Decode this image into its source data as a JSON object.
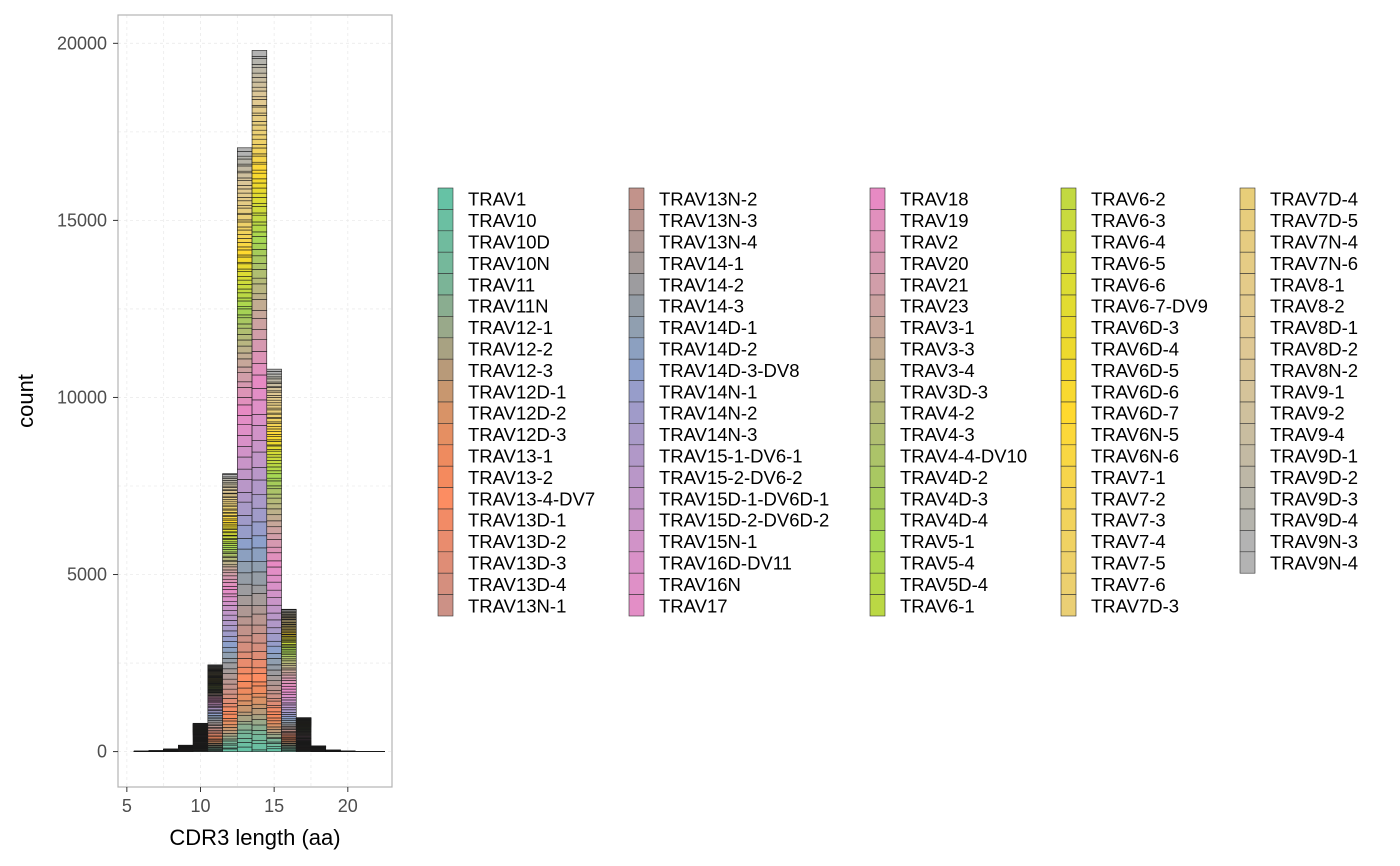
{
  "chart_data": {
    "type": "bar",
    "subtype": "stacked-histogram",
    "xlabel": "CDR3 length (aa)",
    "ylabel": "count",
    "xlim": [
      4.4,
      23.0
    ],
    "ylim": [
      -1000,
      20800
    ],
    "x_ticks": [
      5,
      10,
      15,
      20
    ],
    "y_ticks": [
      0,
      5000,
      10000,
      15000,
      20000
    ],
    "x_tick_labels": [
      "5",
      "10",
      "15",
      "20"
    ],
    "y_tick_labels": [
      "0",
      "5000",
      "10000",
      "15000",
      "20000"
    ],
    "grid": true,
    "legend_position": "right",
    "bar_width": 1,
    "totals": [
      {
        "x": 6,
        "total": 10
      },
      {
        "x": 7,
        "total": 25
      },
      {
        "x": 8,
        "total": 70
      },
      {
        "x": 9,
        "total": 180
      },
      {
        "x": 10,
        "total": 800
      },
      {
        "x": 11,
        "total": 2450
      },
      {
        "x": 12,
        "total": 7850
      },
      {
        "x": 13,
        "total": 17050
      },
      {
        "x": 14,
        "total": 19800
      },
      {
        "x": 15,
        "total": 10800
      },
      {
        "x": 16,
        "total": 4020
      },
      {
        "x": 17,
        "total": 960
      },
      {
        "x": 18,
        "total": 160
      },
      {
        "x": 19,
        "total": 40
      },
      {
        "x": 20,
        "total": 15
      },
      {
        "x": 21,
        "total": 8
      },
      {
        "x": 22,
        "total": 4
      }
    ],
    "series": [
      {
        "name": "TRAV1",
        "color": "#66C2A5"
      },
      {
        "name": "TRAV10",
        "color": "#6BBFA2"
      },
      {
        "name": "TRAV10D",
        "color": "#70BB9E"
      },
      {
        "name": "TRAV10N",
        "color": "#75B89B"
      },
      {
        "name": "TRAV11",
        "color": "#7BB497"
      },
      {
        "name": "TRAV11N",
        "color": "#8AAD90"
      },
      {
        "name": "TRAV12-1",
        "color": "#99A98A"
      },
      {
        "name": "TRAV12-2",
        "color": "#A8A282"
      },
      {
        "name": "TRAV12-3",
        "color": "#B89A79"
      },
      {
        "name": "TRAV12D-1",
        "color": "#C8976F"
      },
      {
        "name": "TRAV12D-2",
        "color": "#D89367"
      },
      {
        "name": "TRAV12D-3",
        "color": "#E58F62"
      },
      {
        "name": "TRAV13-1",
        "color": "#EE8B5F"
      },
      {
        "name": "TRAV13-2",
        "color": "#F48A5E"
      },
      {
        "name": "TRAV13-4-DV7",
        "color": "#FC8D62"
      },
      {
        "name": "TRAV13D-1",
        "color": "#F28B66"
      },
      {
        "name": "TRAV13D-2",
        "color": "#E98C6E"
      },
      {
        "name": "TRAV13D-3",
        "color": "#DF8D76"
      },
      {
        "name": "TRAV13D-4",
        "color": "#D58F7E"
      },
      {
        "name": "TRAV13N-1",
        "color": "#CC9186"
      },
      {
        "name": "TRAV13N-2",
        "color": "#C2938B"
      },
      {
        "name": "TRAV13N-3",
        "color": "#B99690"
      },
      {
        "name": "TRAV13N-4",
        "color": "#AF9894"
      },
      {
        "name": "TRAV14-1",
        "color": "#A69B99"
      },
      {
        "name": "TRAV14-2",
        "color": "#9D9C9F"
      },
      {
        "name": "TRAV14-3",
        "color": "#959DA6"
      },
      {
        "name": "TRAV14D-1",
        "color": "#909FB0"
      },
      {
        "name": "TRAV14D-2",
        "color": "#8CA0C0"
      },
      {
        "name": "TRAV14D-3-DV8",
        "color": "#8DA0CB"
      },
      {
        "name": "TRAV14N-1",
        "color": "#979DCA"
      },
      {
        "name": "TRAV14N-2",
        "color": "#A09BC9"
      },
      {
        "name": "TRAV14N-3",
        "color": "#A99AC8"
      },
      {
        "name": "TRAV15-1-DV6-1",
        "color": "#B198C8"
      },
      {
        "name": "TRAV15-2-DV6-2",
        "color": "#B997C8"
      },
      {
        "name": "TRAV15D-1-DV6D-1",
        "color": "#C196C8"
      },
      {
        "name": "TRAV15D-2-DV6D-2",
        "color": "#C995C8"
      },
      {
        "name": "TRAV15N-1",
        "color": "#D193C8"
      },
      {
        "name": "TRAV16D-DV11",
        "color": "#D991C8"
      },
      {
        "name": "TRAV16N",
        "color": "#DF90C7"
      },
      {
        "name": "TRAV17",
        "color": "#E38EC6"
      },
      {
        "name": "TRAV18",
        "color": "#E78AC3"
      },
      {
        "name": "TRAV19",
        "color": "#E190BD"
      },
      {
        "name": "TRAV2",
        "color": "#DC94B6"
      },
      {
        "name": "TRAV20",
        "color": "#D699B0"
      },
      {
        "name": "TRAV21",
        "color": "#D19EA9"
      },
      {
        "name": "TRAV23",
        "color": "#CCA2A1"
      },
      {
        "name": "TRAV3-1",
        "color": "#C7A79A"
      },
      {
        "name": "TRAV3-3",
        "color": "#C2AC92"
      },
      {
        "name": "TRAV3-4",
        "color": "#BDB18A"
      },
      {
        "name": "TRAV3D-3",
        "color": "#B9B681"
      },
      {
        "name": "TRAV4-2",
        "color": "#B5BA79"
      },
      {
        "name": "TRAV4-3",
        "color": "#B0BE71"
      },
      {
        "name": "TRAV4-4-DV10",
        "color": "#ACC369"
      },
      {
        "name": "TRAV4D-2",
        "color": "#A9C862"
      },
      {
        "name": "TRAV4D-3",
        "color": "#A6CC5A"
      },
      {
        "name": "TRAV4D-4",
        "color": "#A5D155"
      },
      {
        "name": "TRAV5-1",
        "color": "#A6D854"
      },
      {
        "name": "TRAV5-4",
        "color": "#ADD74E"
      },
      {
        "name": "TRAV5D-4",
        "color": "#B4D848"
      },
      {
        "name": "TRAV6-1",
        "color": "#BBD844"
      },
      {
        "name": "TRAV6-2",
        "color": "#C2D941"
      },
      {
        "name": "TRAV6-3",
        "color": "#C9DA3E"
      },
      {
        "name": "TRAV6-4",
        "color": "#CFDB3B"
      },
      {
        "name": "TRAV6-5",
        "color": "#D5DC37"
      },
      {
        "name": "TRAV6-6",
        "color": "#DCDC34"
      },
      {
        "name": "TRAV6-7-DV9",
        "color": "#E2DC31"
      },
      {
        "name": "TRAV6D-3",
        "color": "#E8DA2F"
      },
      {
        "name": "TRAV6D-4",
        "color": "#EDD92D"
      },
      {
        "name": "TRAV6D-5",
        "color": "#F3D92E"
      },
      {
        "name": "TRAV6D-6",
        "color": "#F8D930"
      },
      {
        "name": "TRAV6D-7",
        "color": "#FFD92F"
      },
      {
        "name": "TRAV6N-5",
        "color": "#FCD83A"
      },
      {
        "name": "TRAV6N-6",
        "color": "#F9D743"
      },
      {
        "name": "TRAV7-1",
        "color": "#F6D54C"
      },
      {
        "name": "TRAV7-2",
        "color": "#F4D455"
      },
      {
        "name": "TRAV7-3",
        "color": "#F2D35C"
      },
      {
        "name": "TRAV7-4",
        "color": "#F0D263"
      },
      {
        "name": "TRAV7-5",
        "color": "#EED169"
      },
      {
        "name": "TRAV7-6",
        "color": "#ECD06F"
      },
      {
        "name": "TRAV7D-3",
        "color": "#EACF75"
      },
      {
        "name": "TRAV7D-4",
        "color": "#E8CE79"
      },
      {
        "name": "TRAV7D-5",
        "color": "#E7CD7D"
      },
      {
        "name": "TRAV7N-4",
        "color": "#E6CC81"
      },
      {
        "name": "TRAV7N-6",
        "color": "#E5CC85"
      },
      {
        "name": "TRAV8-1",
        "color": "#E4CB89"
      },
      {
        "name": "TRAV8-2",
        "color": "#E3CB8D"
      },
      {
        "name": "TRAV8D-1",
        "color": "#E2CA91"
      },
      {
        "name": "TRAV8D-2",
        "color": "#DFC894"
      },
      {
        "name": "TRAV8N-2",
        "color": "#DBC697"
      },
      {
        "name": "TRAV9-1",
        "color": "#D5C39A"
      },
      {
        "name": "TRAV9-2",
        "color": "#CFC09D"
      },
      {
        "name": "TRAV9-4",
        "color": "#C9BDA0"
      },
      {
        "name": "TRAV9D-1",
        "color": "#C3BAA3"
      },
      {
        "name": "TRAV9D-2",
        "color": "#BDB7A6"
      },
      {
        "name": "TRAV9D-3",
        "color": "#B8B5A9"
      },
      {
        "name": "TRAV9D-4",
        "color": "#B5B4AD"
      },
      {
        "name": "TRAV9N-3",
        "color": "#B3B3B3"
      },
      {
        "name": "TRAV9N-4",
        "color": "#B3B3B3"
      }
    ]
  }
}
